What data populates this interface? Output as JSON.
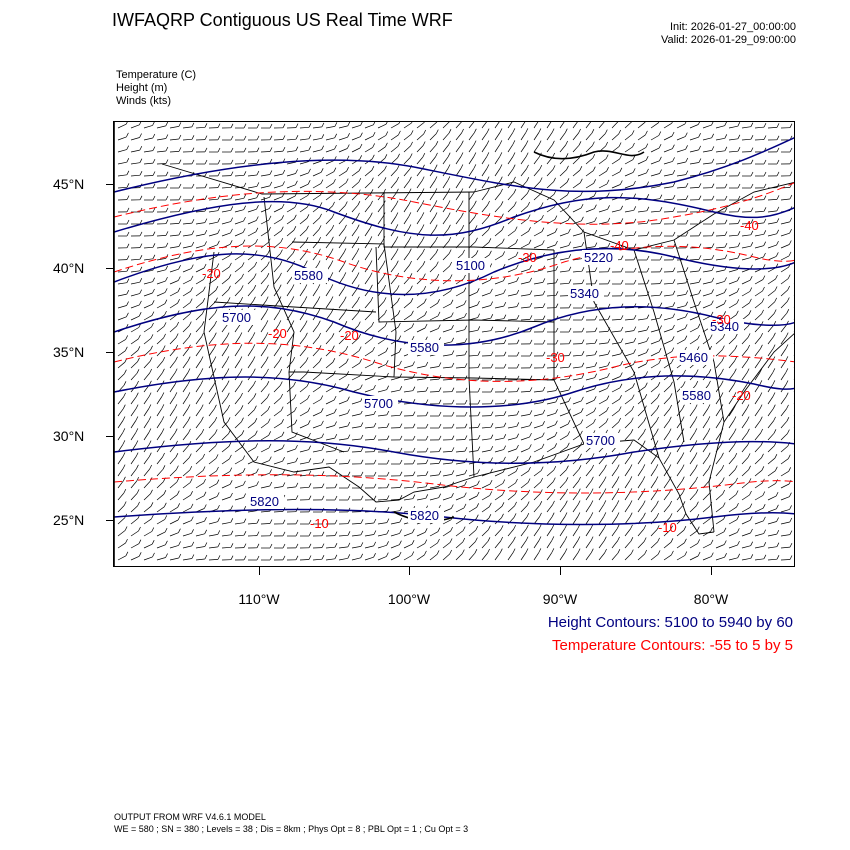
{
  "header": {
    "title": "IWFAQRP Contiguous US Real Time WRF",
    "init": "Init: 2026-01-27_00:00:00",
    "valid": "Valid: 2026-01-29_09:00:00"
  },
  "variables": {
    "temperature": "Temperature   (C)",
    "height": "Height   (m)",
    "winds": "Winds   (kts)"
  },
  "axes": {
    "latitude_labels": [
      "45°N",
      "40°N",
      "35°N",
      "30°N",
      "25°N"
    ],
    "longitude_labels": [
      "110°W",
      "100°W",
      "90°W",
      "80°W"
    ]
  },
  "height_contour_labels": [
    "5580",
    "5700",
    "5580",
    "5700",
    "5820",
    "5820",
    "5100",
    "5220",
    "5340",
    "5340",
    "5460",
    "5580",
    "5700"
  ],
  "temperature_contour_labels": [
    "-20",
    "-20",
    "-20",
    "-30",
    "-40",
    "-30",
    "-30",
    "-20",
    "-40",
    "-10",
    "-10"
  ],
  "legend": {
    "height": "Height Contours: 5100 to 5940 by 60",
    "temperature": "Temperature Contours: -55 to 5 by 5"
  },
  "footer": {
    "line1": "OUTPUT FROM WRF V4.6.1 MODEL",
    "line2": "WE = 580 ; SN = 380 ; Levels = 38 ; Dis = 8km ; Phys Opt = 8 ; PBL Opt = 1 ; Cu Opt = 3"
  },
  "colors": {
    "height_contour": "#000080",
    "temperature_contour": "#ff0000",
    "boundaries": "#000000",
    "wind_barbs": "#000000"
  }
}
